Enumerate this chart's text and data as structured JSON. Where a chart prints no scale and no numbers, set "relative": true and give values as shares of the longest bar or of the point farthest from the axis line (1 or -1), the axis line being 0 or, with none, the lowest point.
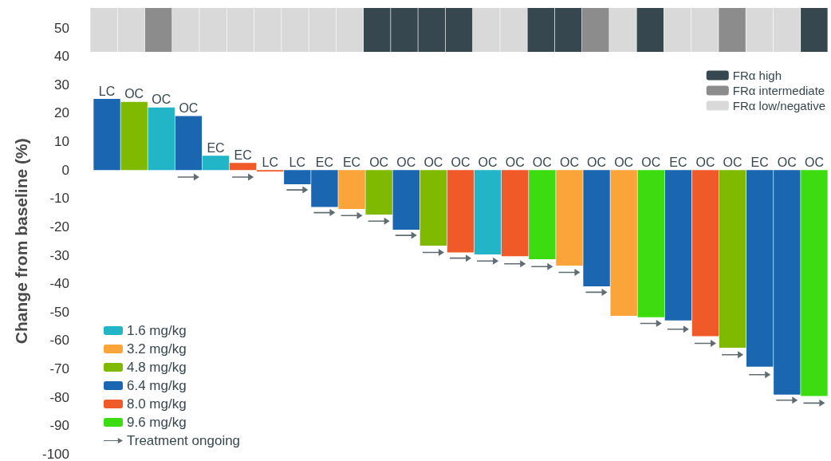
{
  "chart_data": [
    {
      "type": "bar",
      "legend": "bottom right",
      "relative": true,
      "stacked": true,
      "categories": [
        null,
        null,
        null,
        null,
        null,
        null,
        null,
        null,
        null,
        null,
        null,
        null,
        null,
        null,
        null,
        null,
        null,
        null,
        null,
        null,
        null,
        null,
        null,
        null,
        null,
        null,
        null
      ],
      "series": [
        {
          "name": "FRα high",
          "color": "#37474f",
          "values": [
            null,
            null,
            null,
            null,
            null,
            null,
            null,
            null,
            null,
            null,
            1,
            1,
            1,
            1,
            null,
            null,
            1,
            1,
            null,
            null,
            1,
            null,
            null,
            null,
            null,
            null,
            1
          ]
        },
        {
          "name": "FRα intermediate",
          "color": "#8c8c8c",
          "values": [
            null,
            null,
            1,
            null,
            null,
            null,
            null,
            null,
            null,
            null,
            null,
            null,
            null,
            null,
            null,
            null,
            null,
            null,
            1,
            null,
            null,
            null,
            null,
            1,
            null,
            null,
            null
          ]
        },
        {
          "name": "FRα low/negative",
          "color": "#d9d9d9",
          "values": [
            1,
            1,
            null,
            1,
            1,
            1,
            1,
            1,
            1,
            1,
            null,
            null,
            null,
            null,
            1,
            1,
            null,
            null,
            null,
            1,
            null,
            1,
            1,
            null,
            1,
            1,
            null
          ]
        }
      ]
    },
    {
      "type": "bar",
      "ylabel": "Change from baseline (%)",
      "legend": "bottom left",
      "grid": false,
      "stacked": true,
      "categories": [
        "LC",
        "OC",
        "OC",
        "OC",
        "EC",
        "EC",
        "LC",
        "LC",
        "EC",
        "EC",
        "OC",
        "OC",
        "OC",
        "OC",
        "OC",
        "OC",
        "OC",
        "OC",
        "OC",
        "OC",
        "OC",
        "EC",
        "OC",
        "OC",
        "EC",
        "OC",
        "OC"
      ],
      "ylim": [
        -100,
        50
      ],
      "yticks": [
        -100,
        -90,
        -80,
        -70,
        -60,
        -50,
        -40,
        -30,
        -20,
        -10,
        0,
        10,
        20,
        30,
        40,
        50
      ],
      "series": [
        {
          "name": "1.6 mg/kg",
          "color": "#22b5c8",
          "values": [
            null,
            null,
            22,
            null,
            5,
            null,
            null,
            null,
            null,
            null,
            null,
            null,
            null,
            null,
            -29.7,
            null,
            null,
            null,
            null,
            null,
            null,
            null,
            null,
            null,
            null,
            null,
            null
          ]
        },
        {
          "name": "3.2 mg/kg",
          "color": "#fba43a",
          "values": [
            null,
            null,
            null,
            null,
            null,
            null,
            null,
            null,
            null,
            -13.7,
            null,
            null,
            null,
            null,
            null,
            null,
            null,
            -33.6,
            null,
            -51.3,
            null,
            null,
            null,
            null,
            null,
            null,
            null
          ]
        },
        {
          "name": "4.8 mg/kg",
          "color": "#7fba00",
          "values": [
            null,
            24,
            null,
            null,
            null,
            null,
            null,
            null,
            null,
            null,
            -15.7,
            null,
            -26.6,
            null,
            null,
            null,
            null,
            null,
            null,
            null,
            null,
            null,
            null,
            -62.5,
            null,
            null,
            null
          ]
        },
        {
          "name": "6.4 mg/kg",
          "color": "#1a66b0",
          "values": [
            25,
            null,
            null,
            19,
            null,
            null,
            null,
            -5,
            -13,
            null,
            null,
            -21,
            null,
            null,
            null,
            null,
            null,
            null,
            -40.9,
            null,
            null,
            -52.9,
            null,
            null,
            -69.2,
            -79,
            null
          ]
        },
        {
          "name": "8.0 mg/kg",
          "color": "#f05a28",
          "values": [
            null,
            null,
            null,
            null,
            null,
            2.5,
            -0.5,
            null,
            null,
            null,
            null,
            null,
            null,
            -29,
            null,
            -30.3,
            null,
            null,
            null,
            null,
            null,
            null,
            -58.5,
            null,
            null,
            null,
            null
          ]
        },
        {
          "name": "9.6 mg/kg",
          "color": "#3ddc10",
          "values": [
            null,
            null,
            null,
            null,
            null,
            null,
            null,
            null,
            null,
            null,
            null,
            null,
            null,
            null,
            null,
            null,
            -31.4,
            null,
            null,
            null,
            -51.8,
            null,
            null,
            null,
            null,
            null,
            -79.5
          ]
        },
        {
          "name": "Treatment ongoing",
          "type": "scatter",
          "color": "#37474f",
          "values": [
            null,
            null,
            null,
            -2.5,
            null,
            -2.5,
            null,
            -7,
            -15,
            -16,
            -18,
            -23,
            -29,
            -31,
            -32,
            -33,
            -34,
            -36,
            -43,
            null,
            -54,
            -56,
            -61,
            -65,
            -72,
            -81,
            -82
          ]
        }
      ]
    }
  ]
}
